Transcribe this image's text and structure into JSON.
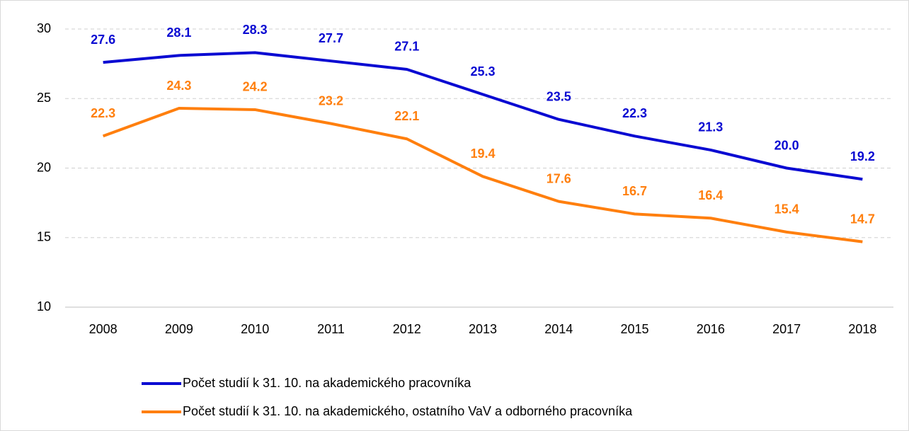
{
  "chart_data": {
    "type": "line",
    "categories": [
      "2008",
      "2009",
      "2010",
      "2011",
      "2012",
      "2013",
      "2014",
      "2015",
      "2016",
      "2017",
      "2018"
    ],
    "series": [
      {
        "name": "Počet studií k 31. 10. na akademického pracovníka",
        "color": "#0a0ad2",
        "values": [
          27.6,
          28.1,
          28.3,
          27.7,
          27.1,
          25.3,
          23.5,
          22.3,
          21.3,
          20.0,
          19.2
        ],
        "value_labels": [
          "27.6",
          "28.1",
          "28.3",
          "27.7",
          "27.1",
          "25.3",
          "23.5",
          "22.3",
          "21.3",
          "20.0",
          "19.2"
        ]
      },
      {
        "name": "Počet studií k 31. 10. na akademického, ostatního VaV a odborného pracovníka",
        "color": "#ff7f0e",
        "values": [
          22.3,
          24.3,
          24.2,
          23.2,
          22.1,
          19.4,
          17.6,
          16.7,
          16.4,
          15.4,
          14.7
        ],
        "value_labels": [
          "22.3",
          "24.3",
          "24.2",
          "23.2",
          "22.1",
          "19.4",
          "17.6",
          "16.7",
          "16.4",
          "15.4",
          "14.7"
        ]
      }
    ],
    "ylim": [
      10,
      30
    ],
    "yticks": [
      10,
      15,
      20,
      25,
      30
    ],
    "grid": true,
    "legend": "bottom"
  }
}
